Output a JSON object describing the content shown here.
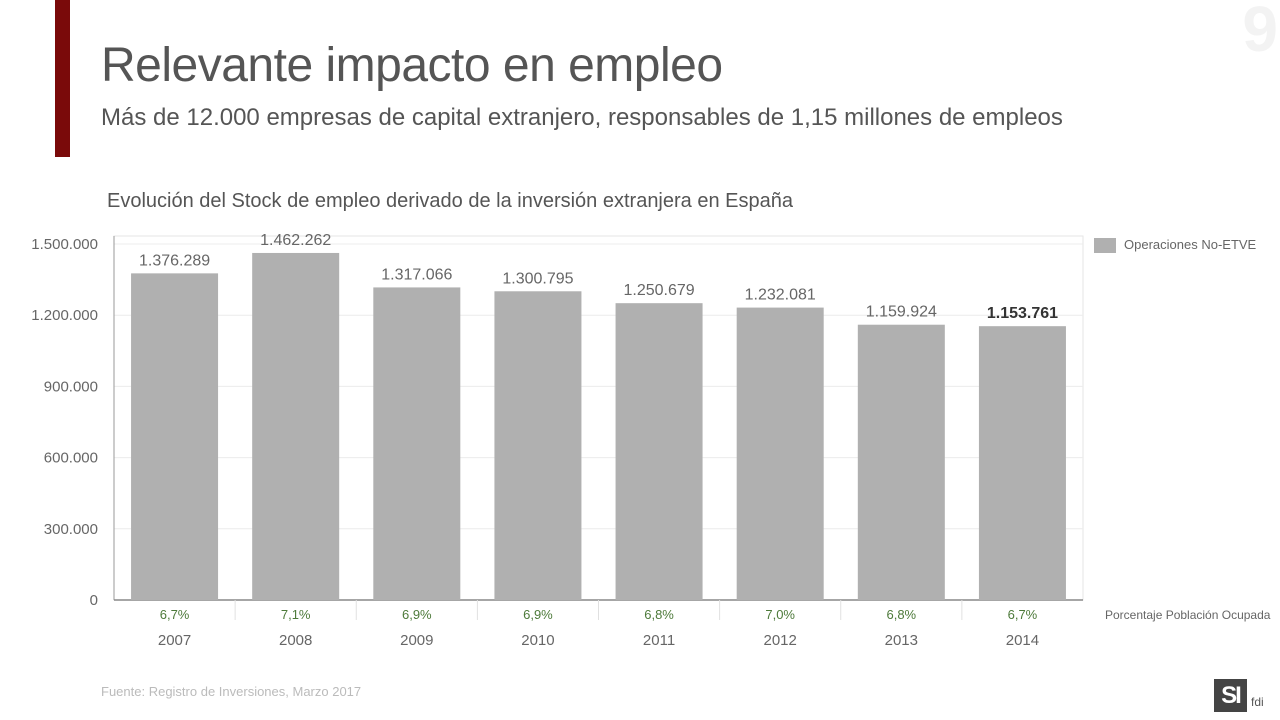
{
  "page": {
    "title": "Relevante impacto en empleo",
    "subtitle": "Más de 12.000 empresas de capital extranjero, responsables de 1,15 millones de empleos",
    "page_number": "9",
    "source": "Fuente: Registro de Inversiones, Marzo 2017",
    "logo": "SI",
    "logo_suffix": "fdi"
  },
  "colors": {
    "accent": "#7a0a0a",
    "bar": "#b0b0b0",
    "pct_text": "#4d7a3a"
  },
  "chart_data": {
    "type": "bar",
    "title": "Evolución del Stock de empleo derivado de la inversión extranjera en España",
    "categories": [
      "2007",
      "2008",
      "2009",
      "2010",
      "2011",
      "2012",
      "2013",
      "2014"
    ],
    "series": [
      {
        "name": "Operaciones No-ETVE",
        "values": [
          1376289,
          1462262,
          1317066,
          1300795,
          1250679,
          1232081,
          1159924,
          1153761
        ],
        "labels": [
          "1.376.289",
          "1.462.262",
          "1.317.066",
          "1.300.795",
          "1.250.679",
          "1.232.081",
          "1.159.924",
          "1.153.761"
        ]
      }
    ],
    "highlight_index": 7,
    "ylim": [
      0,
      1500000
    ],
    "yticks": [
      0,
      300000,
      600000,
      900000,
      1200000,
      1500000
    ],
    "ytick_labels": [
      "0",
      "300.000",
      "600.000",
      "900.000",
      "1.200.000",
      "1.500.000"
    ],
    "percentages": [
      "6,7%",
      "7,1%",
      "6,9%",
      "6,9%",
      "6,8%",
      "7,0%",
      "6,8%",
      "6,7%"
    ],
    "percentages_label": "Porcentaje Población Ocupada",
    "legend": "Operaciones No-ETVE",
    "legend_position": "top-right"
  }
}
